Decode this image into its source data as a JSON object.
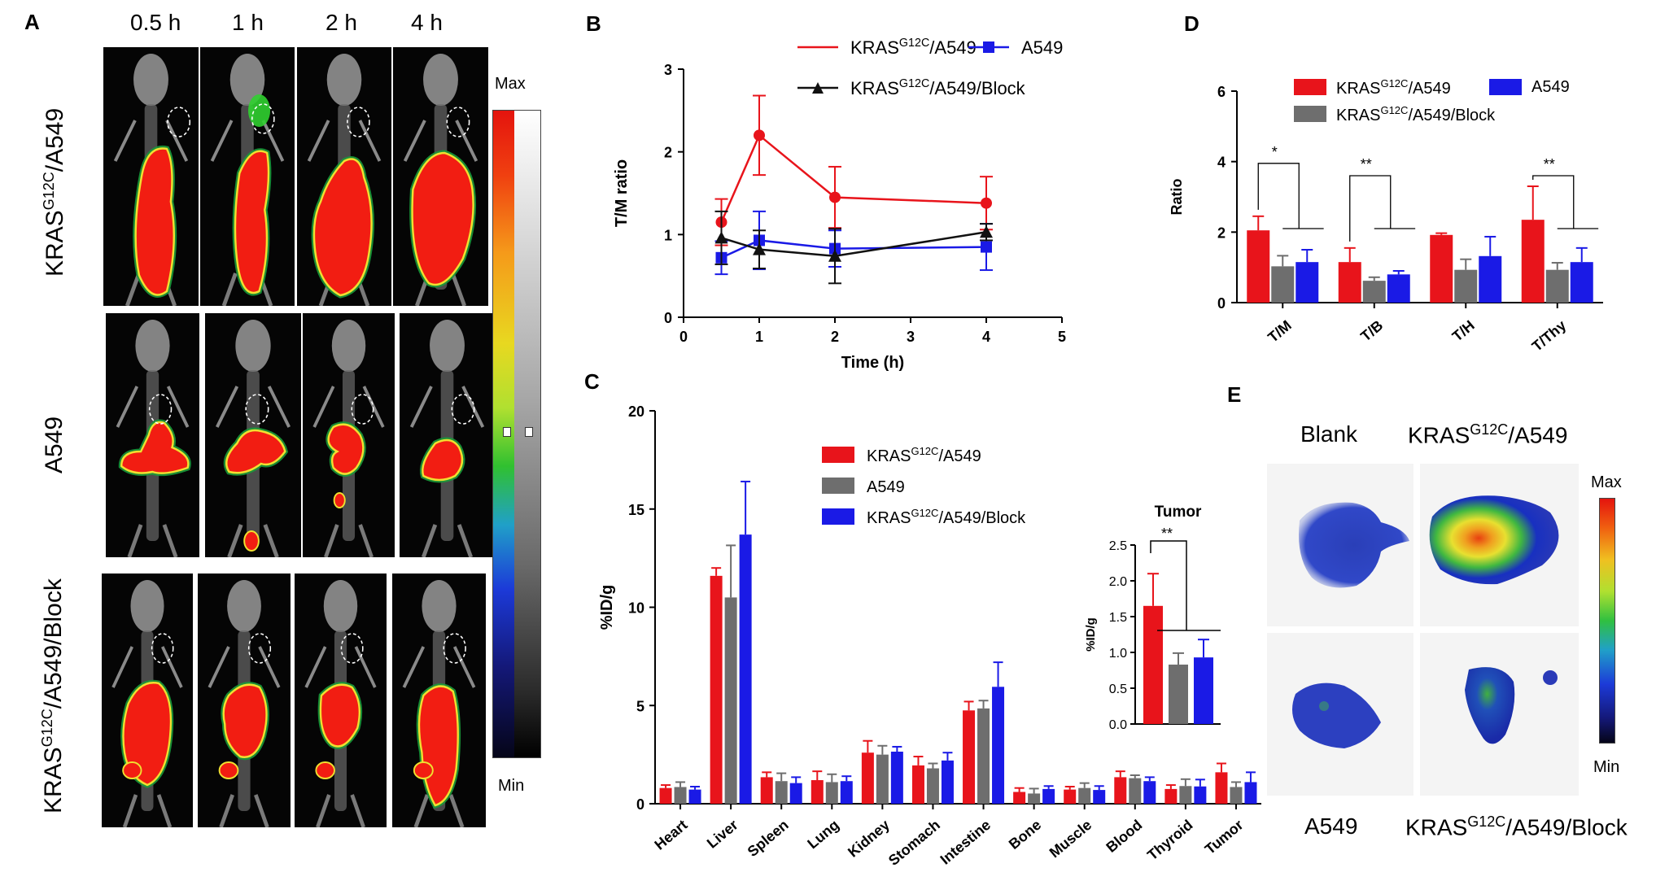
{
  "panel_a": {
    "letter": "A",
    "time_points": [
      "0.5 h",
      "1 h",
      "2 h",
      "4 h"
    ],
    "rows": [
      {
        "label_main": "KRAS",
        "label_sup": "G12C",
        "label_rest": "/A549"
      },
      {
        "label_main": "A549",
        "label_sup": "",
        "label_rest": ""
      },
      {
        "label_main": "KRAS",
        "label_sup": "G12C",
        "label_rest": "/A549/Block"
      }
    ],
    "colorbar_max": "Max",
    "colorbar_min": "Min"
  },
  "panel_b": {
    "letter": "B"
  },
  "panel_c": {
    "letter": "C"
  },
  "panel_d": {
    "letter": "D"
  },
  "panel_e": {
    "letter": "E",
    "labels": {
      "blank": "Blank",
      "kras_main": "KRAS",
      "kras_sup": "G12C",
      "kras_rest": "/A549",
      "a549": "A549",
      "block_main": "KRAS",
      "block_sup": "G12C",
      "block_rest": "/A549/Block"
    },
    "colorbar_max": "Max",
    "colorbar_min": "Min"
  },
  "colors": {
    "kras": "#e8141b",
    "a549": "#1a1ae6",
    "block": "#111111",
    "gray": "#6e6e6e"
  },
  "chart_data": [
    {
      "panel": "B",
      "type": "line",
      "xlabel": "Time (h)",
      "ylabel": "T/M ratio",
      "xlim": [
        0,
        5
      ],
      "ylim": [
        0,
        3
      ],
      "xticks": [
        0,
        1,
        2,
        3,
        4,
        5
      ],
      "yticks": [
        0,
        1,
        2,
        3
      ],
      "legend": [
        {
          "main": "KRAS",
          "sup": "G12C",
          "rest": "/A549",
          "color": "#e8141b",
          "marker": "circle"
        },
        {
          "main": "A549",
          "sup": "",
          "rest": "",
          "color": "#1a1ae6",
          "marker": "square"
        },
        {
          "main": "KRAS",
          "sup": "G12C",
          "rest": "/A549/Block",
          "color": "#111111",
          "marker": "triangle"
        }
      ],
      "series": [
        {
          "name": "KRAS G12C/A549",
          "x": [
            0.5,
            1,
            2,
            4
          ],
          "y": [
            1.15,
            2.2,
            1.45,
            1.38
          ],
          "err": [
            0.28,
            0.48,
            0.37,
            0.32
          ],
          "color": "#e8141b",
          "marker": "circle"
        },
        {
          "name": "A549",
          "x": [
            0.5,
            1,
            2,
            4
          ],
          "y": [
            0.72,
            0.93,
            0.83,
            0.85
          ],
          "err": [
            0.2,
            0.35,
            0.22,
            0.28
          ],
          "color": "#1a1ae6",
          "marker": "square"
        },
        {
          "name": "KRAS G12C/A549/Block",
          "x": [
            0.5,
            1,
            2,
            4
          ],
          "y": [
            0.96,
            0.82,
            0.74,
            1.03
          ],
          "err": [
            0.32,
            0.23,
            0.33,
            0.1
          ],
          "color": "#111111",
          "marker": "triangle"
        }
      ]
    },
    {
      "panel": "C",
      "type": "bar",
      "ylabel": "%ID/g",
      "ylim": [
        0,
        20
      ],
      "yticks": [
        0,
        5,
        10,
        15,
        20
      ],
      "categories": [
        "Heart",
        "Liver",
        "Spleen",
        "Lung",
        "Kidney",
        "Stomach",
        "Intestine",
        "Bone",
        "Muscle",
        "Blood",
        "Thyroid",
        "Tumor"
      ],
      "legend": [
        {
          "main": "KRAS",
          "sup": "G12C",
          "rest": "/A549",
          "color": "#e8141b"
        },
        {
          "main": "A549",
          "sup": "",
          "rest": "",
          "color": "#6e6e6e"
        },
        {
          "main": "KRAS",
          "sup": "G12C",
          "rest": "/A549/Block",
          "color": "#1a1ae6"
        }
      ],
      "series": [
        {
          "name": "KRAS G12C/A549",
          "color": "#e8141b",
          "values": [
            0.8,
            11.6,
            1.35,
            1.2,
            2.6,
            1.95,
            4.75,
            0.6,
            0.72,
            1.35,
            0.75,
            1.6
          ],
          "err": [
            0.15,
            0.4,
            0.25,
            0.45,
            0.6,
            0.45,
            0.45,
            0.2,
            0.15,
            0.3,
            0.2,
            0.45
          ]
        },
        {
          "name": "A549",
          "color": "#6e6e6e",
          "values": [
            0.85,
            10.5,
            1.15,
            1.1,
            2.5,
            1.8,
            4.85,
            0.52,
            0.8,
            1.3,
            0.9,
            0.85
          ],
          "err": [
            0.25,
            2.65,
            0.4,
            0.4,
            0.45,
            0.25,
            0.4,
            0.25,
            0.25,
            0.15,
            0.35,
            0.25
          ]
        },
        {
          "name": "KRAS G12C/A549/Block",
          "color": "#1a1ae6",
          "values": [
            0.72,
            13.7,
            1.05,
            1.15,
            2.65,
            2.2,
            5.95,
            0.75,
            0.7,
            1.15,
            0.88,
            1.1
          ],
          "err": [
            0.15,
            2.7,
            0.3,
            0.25,
            0.25,
            0.4,
            1.25,
            0.15,
            0.2,
            0.2,
            0.35,
            0.5
          ]
        }
      ]
    },
    {
      "panel": "C-inset",
      "type": "bar",
      "title": "Tumor",
      "ylabel": "%ID/g",
      "ylim": [
        0,
        2.5
      ],
      "yticks": [
        "0.0",
        "0.5",
        "1.0",
        "1.5",
        "2.0",
        "2.5"
      ],
      "categories": [
        "KRAS G12C/A549",
        "A549",
        "KRAS G12C/A549/Block"
      ],
      "values": [
        1.65,
        0.83,
        0.93
      ],
      "err": [
        0.45,
        0.16,
        0.25
      ],
      "colors": [
        "#e8141b",
        "#6e6e6e",
        "#1a1ae6"
      ],
      "significance": "**"
    },
    {
      "panel": "D",
      "type": "bar",
      "ylabel": "Ratio",
      "ylim": [
        0,
        6
      ],
      "yticks": [
        0,
        2,
        4,
        6
      ],
      "categories": [
        "T/M",
        "T/B",
        "T/H",
        "T/Thy"
      ],
      "legend": [
        {
          "main": "KRAS",
          "sup": "G12C",
          "rest": "/A549",
          "color": "#e8141b"
        },
        {
          "main": "A549",
          "sup": "",
          "rest": "",
          "color": "#1a1ae6"
        },
        {
          "main": "KRAS",
          "sup": "G12C",
          "rest": "/A549/Block",
          "color": "#6e6e6e"
        }
      ],
      "series": [
        {
          "name": "KRAS G12C/A549",
          "color": "#e8141b",
          "values": [
            2.05,
            1.15,
            1.92,
            2.35
          ],
          "err": [
            0.4,
            0.4,
            0.05,
            0.95
          ]
        },
        {
          "name": "KRAS G12C/A549/Block",
          "color": "#6e6e6e",
          "values": [
            1.03,
            0.62,
            0.93,
            0.93
          ],
          "err": [
            0.3,
            0.1,
            0.3,
            0.2
          ]
        },
        {
          "name": "A549",
          "color": "#1a1ae6",
          "values": [
            1.15,
            0.8,
            1.32,
            1.15
          ],
          "err": [
            0.35,
            0.1,
            0.55,
            0.4
          ]
        }
      ],
      "significance": [
        "*",
        "**",
        "",
        "**"
      ]
    }
  ]
}
